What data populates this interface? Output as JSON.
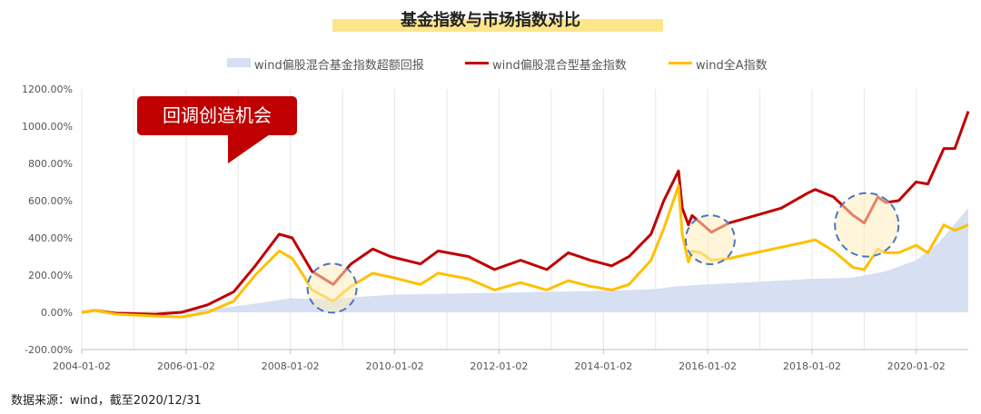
{
  "chart_data": {
    "type": "area",
    "title": "基金指数与市场指数对比",
    "ylim": [
      -200,
      1200
    ],
    "y_ticks": [
      "-200.00%",
      "0.00%",
      "200.00%",
      "400.00%",
      "600.00%",
      "800.00%",
      "1000.00%",
      "1200.00%"
    ],
    "x_tick_labels": [
      "2004-01-02",
      "2006-01-02",
      "2008-01-02",
      "2010-01-02",
      "2012-01-02",
      "2014-01-02",
      "2016-01-02",
      "2018-01-02",
      "2020-01-02"
    ],
    "x_range": [
      "2004-01-02",
      "2020-12-31"
    ],
    "legend_position": "top",
    "gridlines": "vertical",
    "series": [
      {
        "name": "wind偏股混合基金指数超额回报",
        "kind": "area",
        "color": "#d6e0f2",
        "x": [
          "2004-01-02",
          "2005-01-01",
          "2006-01-01",
          "2006-10-01",
          "2007-06-01",
          "2008-01-01",
          "2008-10-01",
          "2009-06-01",
          "2010-01-01",
          "2011-01-01",
          "2012-01-01",
          "2013-01-01",
          "2014-01-01",
          "2015-01-01",
          "2015-06-01",
          "2016-01-01",
          "2017-01-01",
          "2018-01-01",
          "2018-10-01",
          "2019-06-01",
          "2020-01-01",
          "2020-06-01",
          "2020-12-31"
        ],
        "values": [
          0,
          5,
          10,
          25,
          50,
          75,
          70,
          85,
          95,
          100,
          105,
          110,
          115,
          125,
          140,
          150,
          165,
          180,
          185,
          220,
          280,
          370,
          560
        ]
      },
      {
        "name": "wind偏股混合型基金指数",
        "kind": "line",
        "color": "#c00000",
        "x": [
          "2004-01-02",
          "2004-04-01",
          "2004-09-01",
          "2005-06-01",
          "2005-12-01",
          "2006-06-01",
          "2006-12-01",
          "2007-05-01",
          "2007-10-16",
          "2008-01-15",
          "2008-04-01",
          "2008-06-01",
          "2008-10-28",
          "2009-03-01",
          "2009-08-01",
          "2009-12-01",
          "2010-07-01",
          "2010-11-01",
          "2011-06-01",
          "2011-12-01",
          "2012-06-01",
          "2012-12-01",
          "2013-05-01",
          "2013-10-01",
          "2014-03-01",
          "2014-07-01",
          "2014-12-01",
          "2015-03-01",
          "2015-06-12",
          "2015-07-08",
          "2015-08-20",
          "2015-09-15",
          "2015-11-15",
          "2016-01-28",
          "2016-06-01",
          "2016-12-01",
          "2017-06-01",
          "2017-12-01",
          "2018-01-24",
          "2018-06-01",
          "2018-10-18",
          "2019-01-03",
          "2019-04-08",
          "2019-06-01",
          "2019-09-01",
          "2019-12-31",
          "2020-03-23",
          "2020-07-13",
          "2020-09-28",
          "2020-12-31"
        ],
        "values": [
          0,
          10,
          -5,
          -10,
          0,
          40,
          110,
          250,
          420,
          400,
          300,
          220,
          150,
          260,
          340,
          300,
          260,
          330,
          300,
          230,
          280,
          230,
          320,
          280,
          250,
          300,
          420,
          600,
          760,
          560,
          470,
          520,
          480,
          430,
          480,
          520,
          560,
          640,
          660,
          620,
          520,
          480,
          620,
          590,
          600,
          700,
          690,
          880,
          880,
          1080
        ]
      },
      {
        "name": "wind全A指数",
        "kind": "line",
        "color": "#ffc000",
        "x": [
          "2004-01-02",
          "2004-04-01",
          "2004-09-01",
          "2005-06-01",
          "2005-12-01",
          "2006-06-01",
          "2006-12-01",
          "2007-05-01",
          "2007-10-16",
          "2008-01-15",
          "2008-04-01",
          "2008-06-01",
          "2008-10-28",
          "2009-03-01",
          "2009-08-01",
          "2009-12-01",
          "2010-07-01",
          "2010-11-01",
          "2011-06-01",
          "2011-12-01",
          "2012-06-01",
          "2012-12-01",
          "2013-05-01",
          "2013-10-01",
          "2014-03-01",
          "2014-07-01",
          "2014-12-01",
          "2015-03-01",
          "2015-06-12",
          "2015-07-08",
          "2015-08-20",
          "2015-09-15",
          "2015-11-15",
          "2016-01-28",
          "2016-06-01",
          "2016-12-01",
          "2017-06-01",
          "2017-12-01",
          "2018-01-24",
          "2018-06-01",
          "2018-10-18",
          "2019-01-03",
          "2019-04-08",
          "2019-06-01",
          "2019-09-01",
          "2019-12-31",
          "2020-03-23",
          "2020-07-13",
          "2020-09-28",
          "2020-12-31"
        ],
        "values": [
          0,
          10,
          -10,
          -20,
          -25,
          0,
          60,
          200,
          330,
          290,
          200,
          120,
          60,
          140,
          210,
          190,
          150,
          210,
          180,
          120,
          160,
          120,
          170,
          140,
          120,
          150,
          280,
          450,
          680,
          420,
          270,
          330,
          320,
          280,
          290,
          320,
          350,
          380,
          390,
          330,
          240,
          230,
          340,
          320,
          320,
          360,
          320,
          470,
          440,
          470
        ]
      }
    ]
  },
  "callout": {
    "text": "回调创造机会"
  },
  "source_note": "数据来源：wind，截至2020/12/31"
}
